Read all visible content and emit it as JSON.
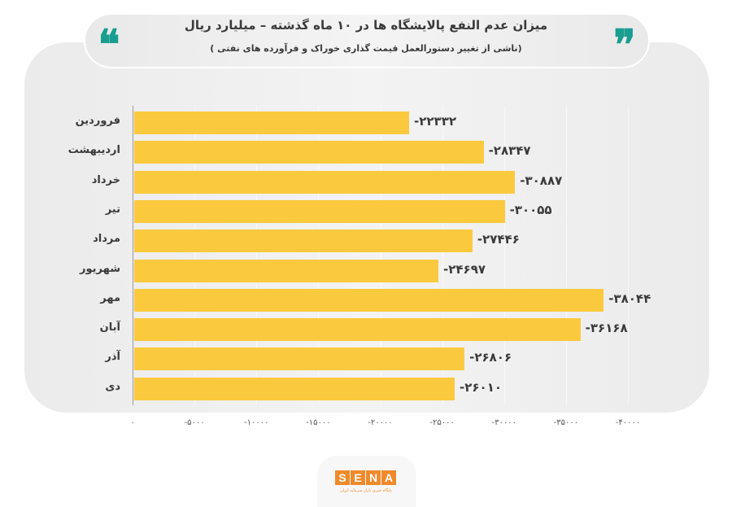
{
  "header": {
    "title": "میزان عدم النفع پالایشگاه ها در ۱۰ ماه گذشته – میلیارد ریال",
    "subtitle": "(ناشی از تغییر دستورالعمل قیمت گذاری خوراک و فرآورده های نفتی )",
    "quote_left_icon": "❝",
    "quote_right_icon": "❞"
  },
  "colors": {
    "bar": "#fbc93e",
    "accent_quote": "#1a9e8f",
    "logo": "#ef8a2b",
    "text": "#3a3a3a"
  },
  "chart_data": {
    "type": "bar",
    "orientation": "horizontal",
    "title": "میزان عدم النفع پالایشگاه ها در ۱۰ ماه گذشته – میلیارد ریال",
    "subtitle": "(ناشی از تغییر دستورالعمل قیمت گذاری خوراک و فرآورده های نفتی )",
    "xlabel": "",
    "ylabel": "",
    "unit": "میلیارد ریال",
    "categories": [
      "فروردین",
      "اردیبهشت",
      "خرداد",
      "تیر",
      "مرداد",
      "شهریور",
      "مهر",
      "آبان",
      "آذر",
      "دی"
    ],
    "values": [
      -22332,
      -28347,
      -30887,
      -30055,
      -27446,
      -24697,
      -38044,
      -36168,
      -26806,
      -26010
    ],
    "value_labels": [
      "-۲۲۳۳۲",
      "-۲۸۳۴۷",
      "-۳۰۸۸۷",
      "-۳۰۰۵۵",
      "-۲۷۴۴۶",
      "-۲۴۶۹۷",
      "-۳۸۰۴۴",
      "-۳۶۱۶۸",
      "-۲۶۸۰۶",
      "-۲۶۰۱۰"
    ],
    "xlim": [
      0,
      -40000
    ],
    "x_ticks": [
      0,
      -5000,
      -10000,
      -15000,
      -20000,
      -25000,
      -30000,
      -35000,
      -40000
    ],
    "x_tick_labels": [
      "۰",
      "-۵۰۰۰",
      "-۱۰۰۰۰",
      "-۱۵۰۰۰",
      "-۲۰۰۰۰",
      "-۲۵۰۰۰",
      "-۳۰۰۰۰",
      "-۳۵۰۰۰",
      "-۴۰۰۰۰"
    ],
    "grid": true,
    "legend": null
  },
  "logo": {
    "letters": [
      "S",
      "E",
      "N",
      "A"
    ],
    "tagline": "پایگاه خبری بازار سرمایه ایران"
  }
}
